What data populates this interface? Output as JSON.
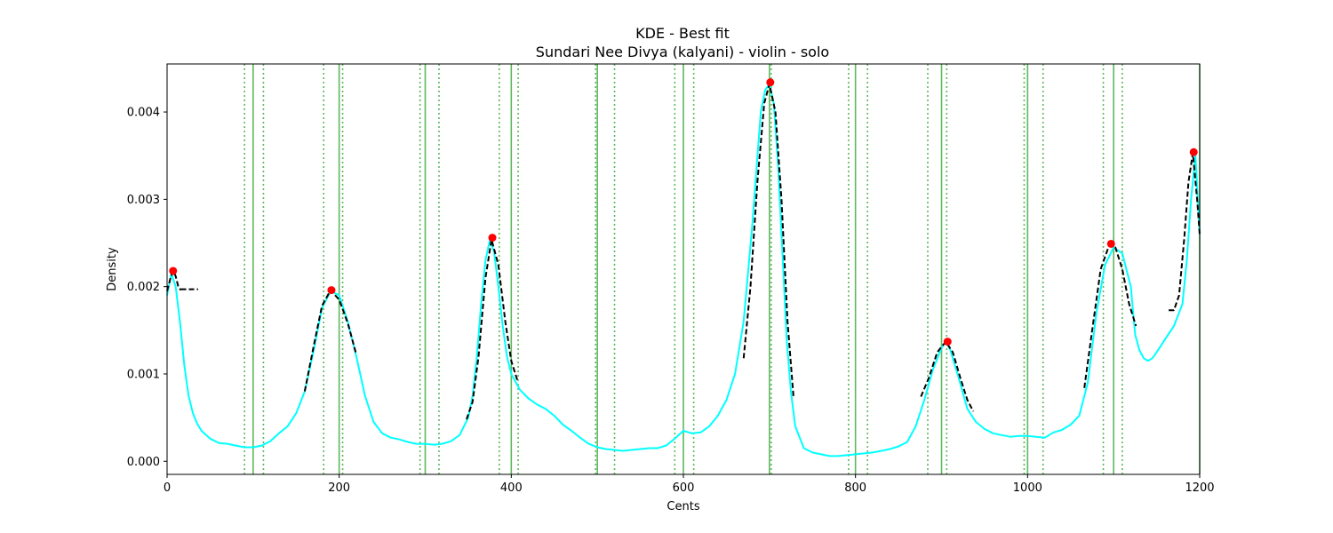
{
  "chart_data": {
    "type": "line",
    "title": "KDE - Best fit",
    "subtitle": "Sundari Nee Divya (kalyani) - violin - solo",
    "xlabel": "Cents",
    "ylabel": "Density",
    "xlim": [
      0,
      1200
    ],
    "ylim": [
      -0.00015,
      0.00455
    ],
    "xticks": [
      0,
      200,
      400,
      600,
      800,
      1000,
      1200
    ],
    "xtick_labels": [
      "0",
      "200",
      "400",
      "600",
      "800",
      "1000",
      "1200"
    ],
    "yticks": [
      0.0,
      0.001,
      0.002,
      0.003,
      0.004
    ],
    "ytick_labels": [
      "0.000",
      "0.001",
      "0.002",
      "0.003",
      "0.004"
    ],
    "grid": false,
    "colors": {
      "kde": "#00ffff",
      "fit": "#000000",
      "peaks": "#ff0000",
      "reference": "#5cb85c"
    },
    "series": [
      {
        "kind": "kde",
        "x": [
          0,
          5,
          10,
          15,
          20,
          25,
          30,
          35,
          40,
          50,
          60,
          70,
          80,
          90,
          100,
          110,
          120,
          130,
          140,
          150,
          160,
          170,
          180,
          190,
          200,
          210,
          220,
          230,
          240,
          250,
          260,
          270,
          280,
          290,
          300,
          310,
          320,
          330,
          340,
          350,
          355,
          360,
          365,
          370,
          375,
          380,
          385,
          390,
          395,
          400,
          410,
          420,
          430,
          440,
          450,
          460,
          470,
          480,
          490,
          500,
          510,
          520,
          530,
          540,
          550,
          560,
          570,
          580,
          590,
          600,
          610,
          620,
          630,
          640,
          650,
          660,
          670,
          680,
          690,
          695,
          700,
          705,
          710,
          715,
          720,
          725,
          730,
          740,
          750,
          760,
          770,
          780,
          790,
          800,
          810,
          820,
          830,
          840,
          850,
          860,
          870,
          880,
          890,
          900,
          905,
          910,
          920,
          930,
          940,
          950,
          960,
          970,
          980,
          990,
          1000,
          1010,
          1020,
          1030,
          1040,
          1050,
          1060,
          1070,
          1080,
          1090,
          1100,
          1110,
          1120,
          1125,
          1130,
          1135,
          1140,
          1145,
          1150,
          1160,
          1170,
          1180,
          1185,
          1190,
          1195,
          1200
        ],
        "y": [
          0.0019,
          0.00215,
          0.002,
          0.0016,
          0.0011,
          0.00075,
          0.00055,
          0.00043,
          0.00035,
          0.00026,
          0.00021,
          0.0002,
          0.00018,
          0.00016,
          0.00016,
          0.00018,
          0.00023,
          0.00032,
          0.0004,
          0.00055,
          0.0008,
          0.00125,
          0.00175,
          0.00195,
          0.0019,
          0.0016,
          0.0012,
          0.00075,
          0.00045,
          0.00032,
          0.00027,
          0.00025,
          0.00022,
          0.0002,
          0.0002,
          0.00019,
          0.0002,
          0.00023,
          0.0003,
          0.0005,
          0.00075,
          0.0012,
          0.0018,
          0.0023,
          0.00253,
          0.0024,
          0.002,
          0.00155,
          0.0012,
          0.001,
          0.00082,
          0.00072,
          0.00065,
          0.0006,
          0.00052,
          0.00042,
          0.00035,
          0.00027,
          0.0002,
          0.00016,
          0.00014,
          0.00013,
          0.00012,
          0.00013,
          0.00014,
          0.00015,
          0.00015,
          0.00018,
          0.00026,
          0.00035,
          0.00032,
          0.00033,
          0.0004,
          0.00052,
          0.0007,
          0.001,
          0.0016,
          0.0027,
          0.004,
          0.00425,
          0.00432,
          0.0041,
          0.0034,
          0.0024,
          0.0014,
          0.0008,
          0.0004,
          0.00015,
          0.0001,
          8e-05,
          6e-05,
          6e-05,
          7e-05,
          8e-05,
          9e-05,
          0.0001,
          0.00012,
          0.00014,
          0.00017,
          0.00022,
          0.0004,
          0.0007,
          0.00105,
          0.0013,
          0.00137,
          0.00128,
          0.00095,
          0.0006,
          0.00045,
          0.00037,
          0.00032,
          0.0003,
          0.00028,
          0.00029,
          0.00029,
          0.00028,
          0.00027,
          0.00033,
          0.00036,
          0.00042,
          0.00052,
          0.0009,
          0.0017,
          0.00225,
          0.00245,
          0.00238,
          0.002,
          0.00145,
          0.00127,
          0.00118,
          0.00115,
          0.00118,
          0.00125,
          0.0014,
          0.00155,
          0.0018,
          0.0023,
          0.003,
          0.0035,
          0.0026
        ]
      },
      {
        "kind": "fit",
        "segments": [
          {
            "x": [
              0,
              4,
              7,
              10,
              13,
              16
            ],
            "y": [
              0.00195,
              0.0021,
              0.00218,
              0.00212,
              0.002,
              0.00196
            ]
          },
          {
            "x": [
              16,
              36
            ],
            "y": [
              0.00197,
              0.00197
            ]
          },
          {
            "x": [
              160,
              170,
              180,
              190,
              200,
              210,
              220
            ],
            "y": [
              0.0008,
              0.0013,
              0.00178,
              0.00196,
              0.00185,
              0.00158,
              0.00122
            ]
          },
          {
            "x": [
              348,
              355,
              362,
              370,
              377,
              385,
              393,
              400,
              407
            ],
            "y": [
              0.00048,
              0.00068,
              0.0012,
              0.0021,
              0.00254,
              0.00225,
              0.0016,
              0.00115,
              0.00093
            ]
          },
          {
            "x": [
              670,
              678,
              686,
              694,
              700,
              707,
              714,
              721,
              728
            ],
            "y": [
              0.00118,
              0.002,
              0.0032,
              0.0041,
              0.00432,
              0.004,
              0.003,
              0.0016,
              0.00074
            ]
          },
          {
            "x": [
              876,
              885,
              895,
              905,
              913,
              922,
              930,
              937
            ],
            "y": [
              0.00074,
              0.00095,
              0.00125,
              0.00137,
              0.00125,
              0.00095,
              0.0007,
              0.00057
            ]
          },
          {
            "x": [
              1066,
              1075,
              1085,
              1095,
              1102,
              1110,
              1118,
              1126
            ],
            "y": [
              0.00084,
              0.0015,
              0.0022,
              0.00248,
              0.00245,
              0.0022,
              0.0018,
              0.00155
            ]
          },
          {
            "x": [
              1164,
              1170,
              1176,
              1182,
              1187,
              1192,
              1197,
              1200
            ],
            "y": [
              0.00173,
              0.00173,
              0.0019,
              0.00255,
              0.0032,
              0.00353,
              0.003,
              0.0026
            ]
          }
        ]
      },
      {
        "kind": "peaks",
        "x": [
          7,
          191,
          378,
          701,
          907,
          1097,
          1193
        ],
        "y": [
          0.00218,
          0.00196,
          0.00256,
          0.00434,
          0.00137,
          0.00249,
          0.00354
        ]
      }
    ],
    "reference_lines": {
      "solid": [
        100,
        200,
        300,
        400,
        500,
        600,
        700,
        800,
        900,
        1000,
        1100,
        1200
      ],
      "dotted": [
        90,
        112,
        182,
        204,
        294,
        316,
        386,
        408,
        498,
        520,
        590,
        612,
        702,
        792,
        814,
        884,
        906,
        996,
        1018,
        1088,
        1110
      ]
    }
  }
}
